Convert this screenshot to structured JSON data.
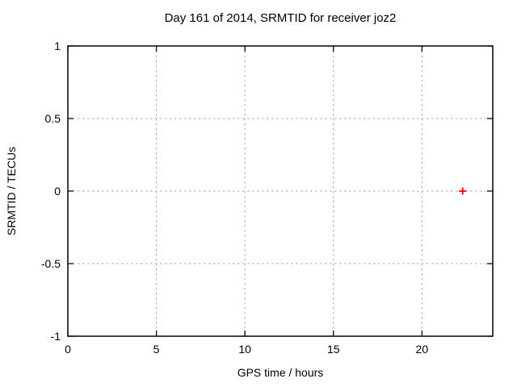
{
  "chart_data": {
    "type": "scatter",
    "title": "Day 161 of 2014, SRMTID for receiver joz2",
    "xlabel": "GPS time / hours",
    "ylabel": "SRMTID / TECUs",
    "xlim": [
      0,
      24
    ],
    "ylim": [
      -1,
      1
    ],
    "xticks": [
      0,
      5,
      10,
      15,
      20
    ],
    "xtick_labels": [
      "0",
      "5",
      "10",
      "15",
      "20"
    ],
    "yticks": [
      -1,
      -0.5,
      0,
      0.5,
      1
    ],
    "ytick_labels": [
      "-1",
      "-0.5",
      "0",
      "0.5",
      "1"
    ],
    "grid": true,
    "grid_style": "dotted",
    "legend": "none",
    "series": [
      {
        "marker": "plus",
        "color": "#ff0000",
        "points": [
          {
            "x": 22.3,
            "y": 0.0
          }
        ]
      }
    ],
    "colors": {
      "background": "#ffffff",
      "border": "#000000",
      "grid": "#a8a8a8",
      "text": "#000000"
    }
  }
}
